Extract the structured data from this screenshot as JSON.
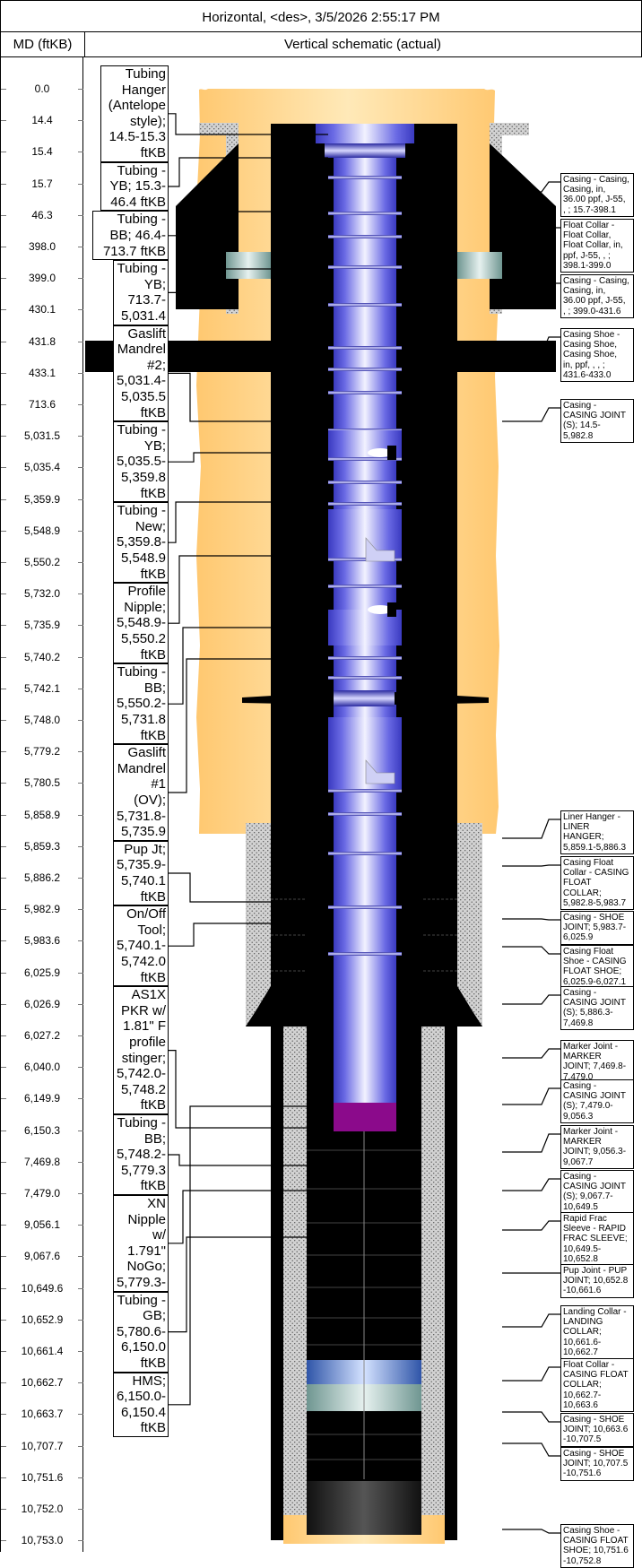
{
  "header": {
    "title": "Horizontal, <des>, 3/5/2026 2:55:17 PM",
    "md_column": "MD (ftKB)",
    "schematic_column": "Vertical schematic (actual)"
  },
  "depths": [
    "0.0",
    "14.4",
    "15.4",
    "15.7",
    "46.3",
    "398.0",
    "399.0",
    "430.1",
    "431.8",
    "433.1",
    "713.6",
    "5,031.5",
    "5,035.4",
    "5,359.9",
    "5,548.9",
    "5,550.2",
    "5,732.0",
    "5,735.9",
    "5,740.2",
    "5,742.1",
    "5,748.0",
    "5,779.2",
    "5,780.5",
    "5,858.9",
    "5,859.3",
    "5,886.2",
    "5,982.9",
    "5,983.6",
    "6,025.9",
    "6,026.9",
    "6,027.2",
    "6,040.0",
    "6,149.9",
    "6,150.3",
    "7,469.8",
    "7,479.0",
    "9,056.1",
    "9,067.6",
    "10,649.6",
    "10,652.9",
    "10,661.4",
    "10,662.7",
    "10,663.7",
    "10,707.7",
    "10,751.6",
    "10,752.0",
    "10,753.0"
  ],
  "left_labels": [
    {
      "lines": [
        "Tubing",
        "Hanger",
        "(Antelope",
        "style);",
        "14.5-15.3",
        "ftKB"
      ]
    },
    {
      "lines": [
        "Tubing -",
        "YB; 15.3-",
        "46.4 ftKB"
      ]
    },
    {
      "lines": [
        "Tubing -",
        "BB; 46.4-",
        "713.7 ftKB"
      ]
    },
    {
      "lines": [
        "Tubing -",
        "YB; 713.7-",
        "5,031.4",
        "ftKB"
      ]
    },
    {
      "lines": [
        "Gaslift",
        "Mandrel",
        "#2;",
        "5,031.4-",
        "5,035.5",
        "ftKB"
      ]
    },
    {
      "lines": [
        "Tubing -",
        "YB;",
        "5,035.5-",
        "5,359.8",
        "ftKB"
      ]
    },
    {
      "lines": [
        "Tubing -",
        "New;",
        "5,359.8-",
        "5,548.9",
        "ftKB"
      ]
    },
    {
      "lines": [
        "Profile",
        "Nipple;",
        "5,548.9-",
        "5,550.2",
        "ftKB"
      ]
    },
    {
      "lines": [
        "Tubing -",
        "BB;",
        "5,550.2-",
        "5,731.8",
        "ftKB"
      ]
    },
    {
      "lines": [
        "Gaslift",
        "Mandrel",
        "#1 (OV);",
        "5,731.8-",
        "5,735.9",
        "ftKB"
      ]
    },
    {
      "lines": [
        "Pup Jt;",
        "5,735.9-",
        "5,740.1",
        "ftKB"
      ]
    },
    {
      "lines": [
        "On/Off",
        "Tool;",
        "5,740.1-",
        "5,742.0",
        "ftKB"
      ]
    },
    {
      "lines": [
        "AS1X",
        "PKR w/",
        "1.81\" F",
        "profile",
        "stinger;",
        "5,742.0-",
        "5,748.2",
        "ftKB"
      ]
    },
    {
      "lines": [
        "Tubing -",
        "BB;",
        "5,748.2-",
        "5,779.3",
        "ftKB"
      ]
    },
    {
      "lines": [
        "XN Nipple",
        "w/ 1.791\"",
        "NoGo;",
        "5,779.3-",
        "5,780.6",
        "ftKB"
      ]
    },
    {
      "lines": [
        "Tubing -",
        "GB;",
        "5,780.6-",
        "6,150.0",
        "ftKB"
      ]
    },
    {
      "lines": [
        "HMS;",
        "6,150.0-",
        "6,150.4",
        "ftKB"
      ]
    }
  ],
  "right_labels": [
    {
      "lines": [
        "Casing - Casing,",
        "Casing,  in,",
        "36.00 ppf, J-55,",
        ", ; 15.7-398.1"
      ]
    },
    {
      "lines": [
        "Float Collar -",
        "Float Collar,",
        "Float Collar,  in,",
        "ppf, J-55, , ;",
        "398.1-399.0"
      ]
    },
    {
      "lines": [
        "Casing - Casing,",
        "Casing,  in,",
        "36.00 ppf, J-55,",
        ", ; 399.0-431.6"
      ]
    },
    {
      "lines": [
        "Casing Shoe -",
        "Casing Shoe,",
        "Casing Shoe,",
        "in,  ppf, , , ;",
        "431.6-433.0"
      ]
    },
    {
      "lines": [
        "Casing -",
        "CASING JOINT",
        "(S); 14.5-",
        "5,982.8"
      ]
    },
    {
      "lines": [
        "Liner Hanger -",
        "LINER",
        "HANGER;",
        "5,859.1-5,886.3"
      ]
    },
    {
      "lines": [
        "Casing Float",
        "Collar - CASING",
        "FLOAT",
        "COLLAR;",
        "5,982.8-5,983.7"
      ]
    },
    {
      "lines": [
        "Casing - SHOE",
        "JOINT; 5,983.7-",
        "6,025.9"
      ]
    },
    {
      "lines": [
        "Casing Float",
        "Shoe - CASING",
        "FLOAT SHOE;",
        "6,025.9-6,027.1"
      ]
    },
    {
      "lines": [
        "Casing -",
        "CASING JOINT",
        "(S); 5,886.3-",
        "7,469.8"
      ]
    },
    {
      "lines": [
        "Marker Joint -",
        "MARKER",
        "JOINT; 7,469.8-",
        "7,479.0"
      ]
    },
    {
      "lines": [
        "Casing -",
        "CASING JOINT",
        "(S); 7,479.0-",
        "9,056.3"
      ]
    },
    {
      "lines": [
        "Marker Joint -",
        "MARKER",
        "JOINT; 9,056.3-",
        "9,067.7"
      ]
    },
    {
      "lines": [
        "Casing -",
        "CASING JOINT",
        "(S); 9,067.7-",
        "10,649.5"
      ]
    },
    {
      "lines": [
        "Rapid Frac",
        "Sleeve - RAPID",
        "FRAC SLEEVE;",
        "10,649.5-",
        "10,652.8"
      ]
    },
    {
      "lines": [
        "Pup Joint - PUP",
        "JOINT; 10,652.8",
        "-10,661.6"
      ]
    },
    {
      "lines": [
        "Landing Collar -",
        "LANDING",
        "COLLAR;",
        "10,661.6-",
        "10,662.7"
      ]
    },
    {
      "lines": [
        "Float Collar -",
        "CASING FLOAT",
        "COLLAR;",
        "10,662.7-",
        "10,663.6"
      ]
    },
    {
      "lines": [
        "Casing - SHOE",
        "JOINT; 10,663.6",
        "-10,707.5"
      ]
    },
    {
      "lines": [
        "Casing - SHOE",
        "JOINT; 10,707.5",
        "-10,751.6"
      ]
    },
    {
      "lines": [
        "Casing Shoe -",
        "CASING FLOAT",
        "SHOE; 10,751.6",
        "-10,752.8"
      ]
    }
  ],
  "colors": {
    "cement": "#ffd68a",
    "hole": "#000000",
    "tubing": "#5a5adf",
    "formation": "#cfcfcf",
    "float_collar": "#a8c8c4",
    "hms": "#8b0a8b",
    "frac_sleeve": "#5a7fc8"
  }
}
